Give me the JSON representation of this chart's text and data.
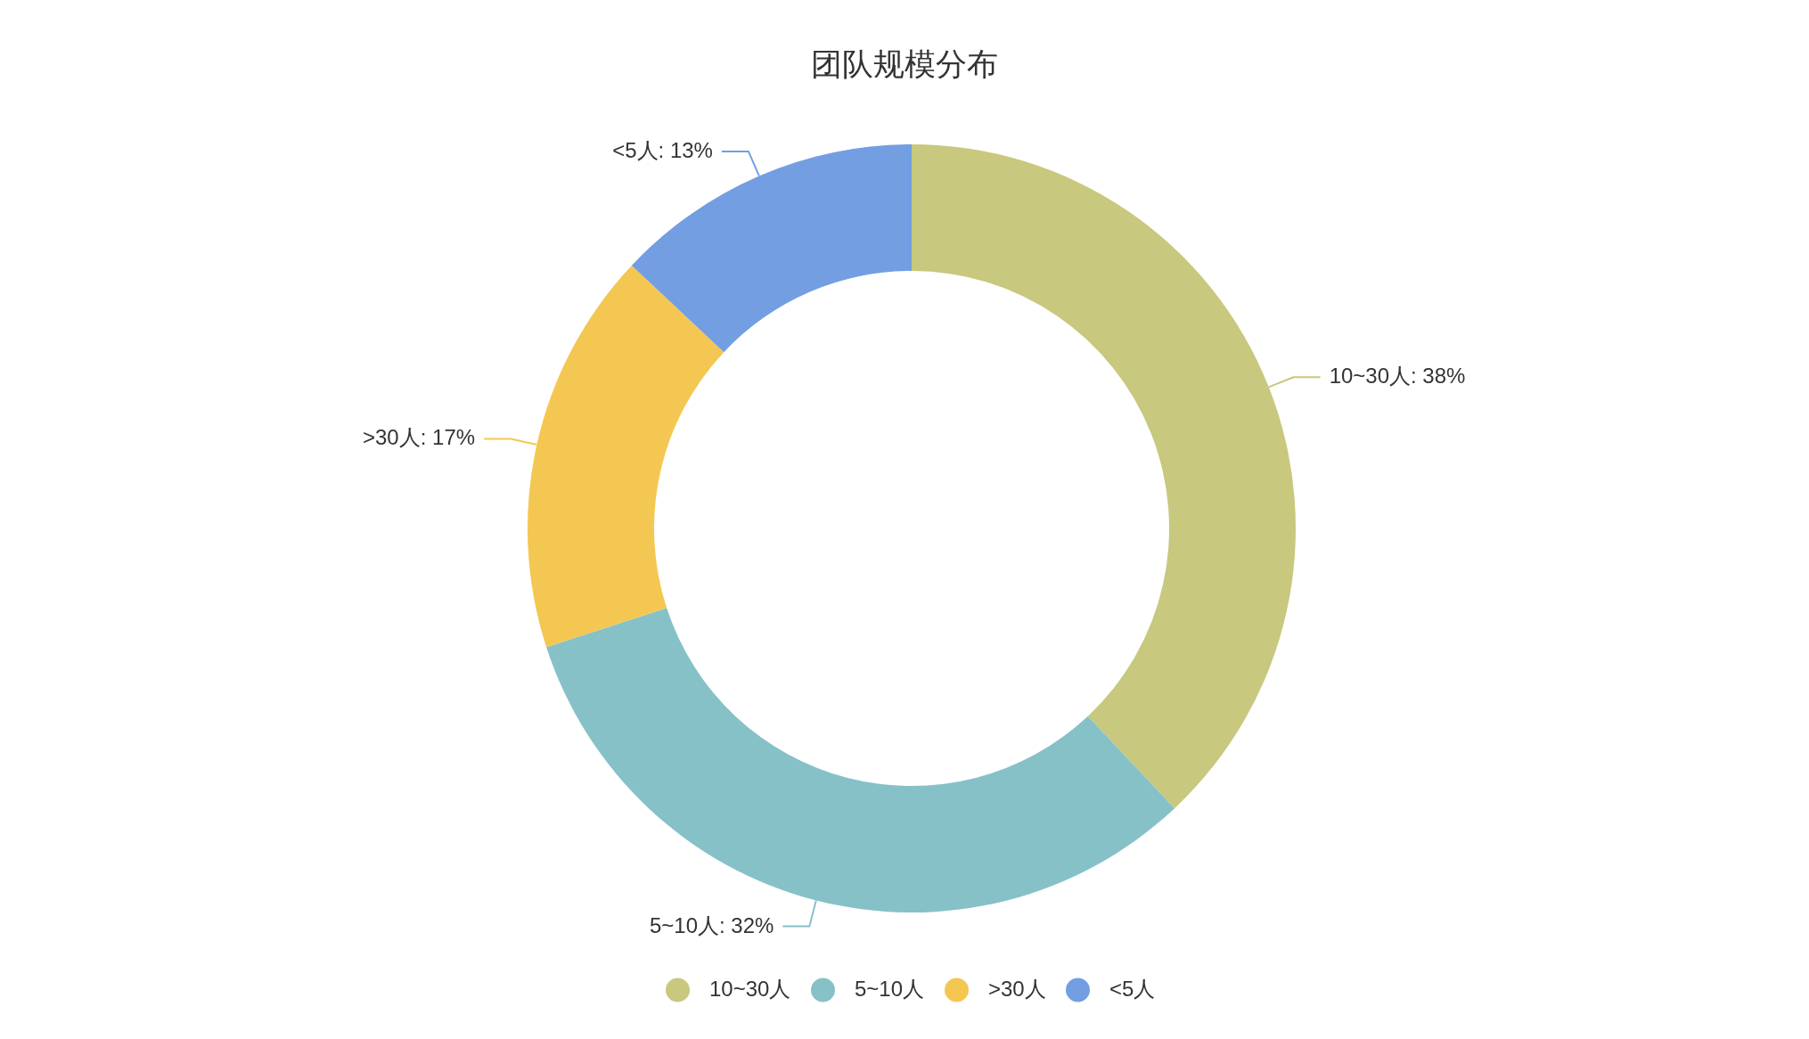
{
  "chart_data": {
    "type": "donut",
    "title": "团队规模分布",
    "categories": [
      "10~30人",
      "5~10人",
      ">30人",
      "<5人"
    ],
    "values": [
      38,
      32,
      17,
      13
    ],
    "colors": [
      "#c8c87e",
      "#86c1c8",
      "#f4c752",
      "#739ee2"
    ],
    "value_labels": [
      "10~30人: 38%",
      "5~10人: 32%",
      ">30人: 17%",
      "<5人: 13%"
    ],
    "legend": "bottom"
  }
}
